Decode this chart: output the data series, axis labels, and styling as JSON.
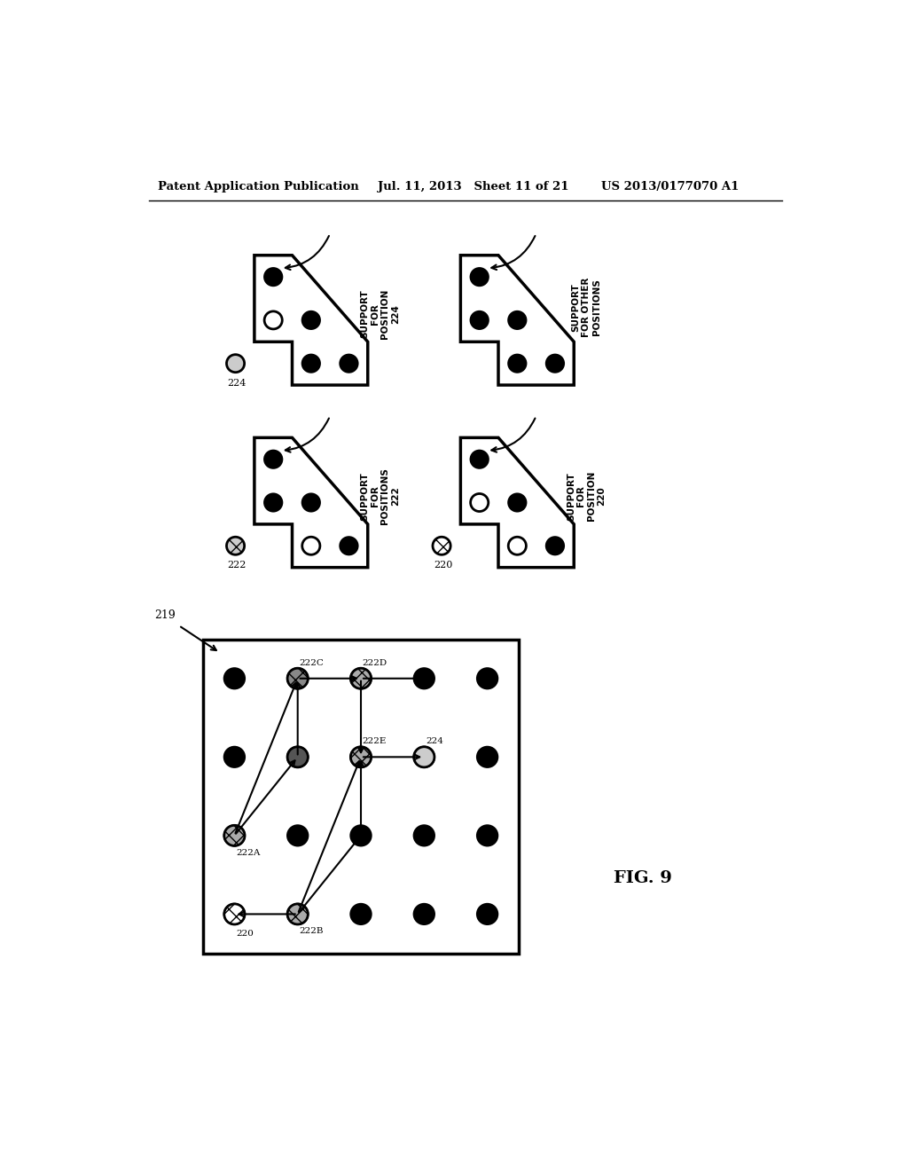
{
  "header_left": "Patent Application Publication",
  "header_mid": "Jul. 11, 2013   Sheet 11 of 21",
  "header_right": "US 2013/0177070 A1",
  "fig_label": "FIG. 9",
  "background": "#ffffff"
}
